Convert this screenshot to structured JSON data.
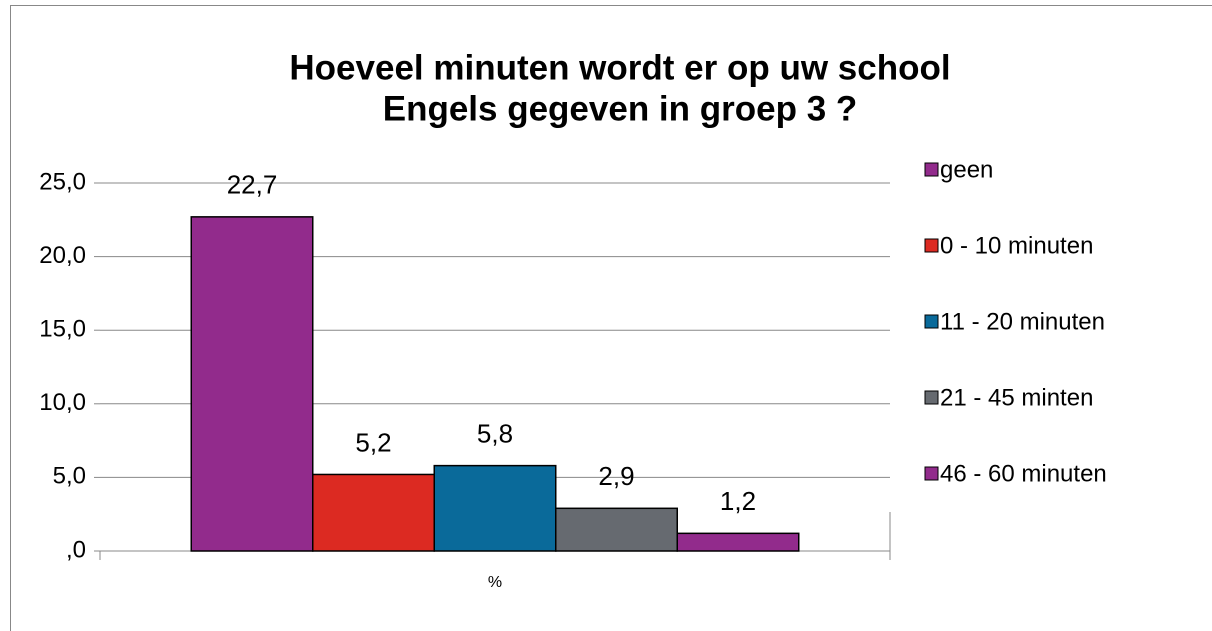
{
  "chart_data": {
    "type": "bar",
    "title": [
      "Hoeveel minuten wordt er op uw school",
      "Engels gegeven in groep 3 ?"
    ],
    "categories": [
      "%"
    ],
    "series": [
      {
        "name": "geen",
        "color": "#922b8c",
        "values": [
          22.7
        ],
        "value_labels": [
          "22,7"
        ]
      },
      {
        "name": "0 - 10 minuten",
        "color": "#dc2a22",
        "values": [
          5.2
        ],
        "value_labels": [
          "5,2"
        ]
      },
      {
        "name": "11 - 20 minuten",
        "color": "#0a6a9a",
        "values": [
          5.8
        ],
        "value_labels": [
          "5,8"
        ]
      },
      {
        "name": "21 - 45 minten",
        "color": "#666a70",
        "values": [
          2.9
        ],
        "value_labels": [
          "2,9"
        ]
      },
      {
        "name": "46 - 60 minuten",
        "color": "#922b8c",
        "values": [
          1.2
        ],
        "value_labels": [
          "1,2"
        ]
      }
    ],
    "ylim": [
      0,
      25
    ],
    "yticks": [
      {
        "value": 0,
        "label": ",0"
      },
      {
        "value": 5,
        "label": "5,0"
      },
      {
        "value": 10,
        "label": "10,0"
      },
      {
        "value": 15,
        "label": "15,0"
      },
      {
        "value": 20,
        "label": "20,0"
      },
      {
        "value": 25,
        "label": "25,0"
      }
    ],
    "grid": true,
    "legend": "right"
  }
}
